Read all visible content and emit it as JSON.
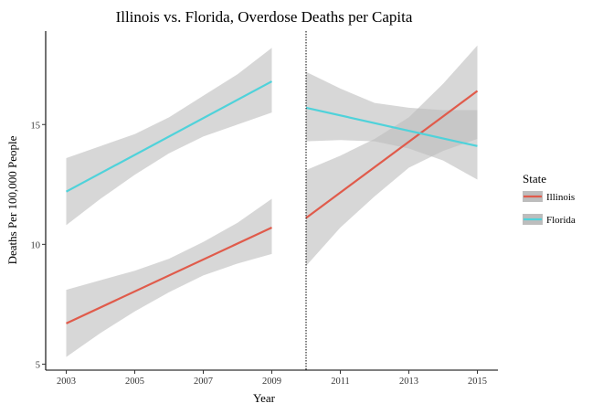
{
  "chart_data": {
    "type": "line",
    "title": "Illinois vs. Florida, Overdose Deaths per Capita",
    "xlabel": "Year",
    "ylabel": "Deaths Per 100,000 People",
    "xlim": [
      2002.4,
      2015.6
    ],
    "ylim": [
      4.75,
      18.9
    ],
    "x_ticks": [
      2003,
      2005,
      2007,
      2009,
      2011,
      2013,
      2015
    ],
    "y_ticks": [
      5,
      10,
      15
    ],
    "grid": false,
    "legend": {
      "title": "State",
      "placement": "right",
      "entries": [
        {
          "label": "Illinois",
          "color": "#e05b4b"
        },
        {
          "label": "Florida",
          "color": "#4fd2da"
        }
      ]
    },
    "vline": {
      "x": 2010,
      "style": "dotted",
      "color": "#000000"
    },
    "band_color": "#bdbdbd",
    "segments": [
      {
        "series": "Illinois",
        "color": "#e05b4b",
        "x": [
          2003,
          2009
        ],
        "y": [
          6.7,
          10.7
        ],
        "ci_x": [
          2003,
          2004,
          2005,
          2006,
          2007,
          2008,
          2009
        ],
        "ci_lower": [
          5.3,
          6.3,
          7.2,
          8.0,
          8.7,
          9.2,
          9.6
        ],
        "ci_upper": [
          8.1,
          8.5,
          8.9,
          9.4,
          10.1,
          10.9,
          11.9
        ]
      },
      {
        "series": "Florida",
        "color": "#4fd2da",
        "x": [
          2003,
          2009
        ],
        "y": [
          12.2,
          16.8
        ],
        "ci_x": [
          2003,
          2004,
          2005,
          2006,
          2007,
          2008,
          2009
        ],
        "ci_lower": [
          10.8,
          11.9,
          12.9,
          13.8,
          14.5,
          15.0,
          15.5
        ],
        "ci_upper": [
          13.6,
          14.1,
          14.6,
          15.3,
          16.2,
          17.1,
          18.2
        ]
      },
      {
        "series": "Illinois",
        "color": "#e05b4b",
        "x": [
          2010,
          2015
        ],
        "y": [
          11.1,
          16.4
        ],
        "ci_x": [
          2010,
          2011,
          2012,
          2013,
          2014,
          2015
        ],
        "ci_lower": [
          9.1,
          10.7,
          12.0,
          13.2,
          13.9,
          14.4
        ],
        "ci_upper": [
          13.1,
          13.7,
          14.4,
          15.3,
          16.7,
          18.3
        ]
      },
      {
        "series": "Florida",
        "color": "#4fd2da",
        "x": [
          2010,
          2015
        ],
        "y": [
          15.7,
          14.1
        ],
        "ci_x": [
          2010,
          2011,
          2012,
          2013,
          2014,
          2015
        ],
        "ci_lower": [
          14.3,
          14.35,
          14.3,
          14.0,
          13.5,
          12.7
        ],
        "ci_upper": [
          17.2,
          16.5,
          15.9,
          15.7,
          15.6,
          15.6
        ]
      }
    ]
  }
}
